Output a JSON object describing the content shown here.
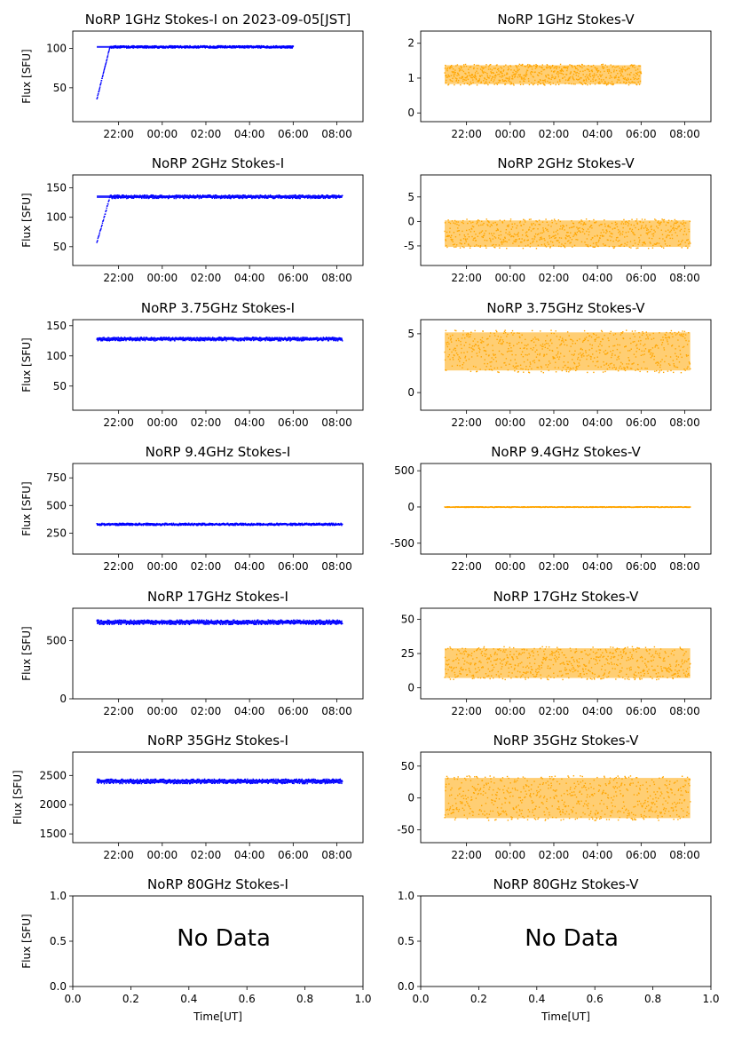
{
  "figure": {
    "xlabel": "Time[UT]",
    "time_ticks": [
      "22:00",
      "00:00",
      "02:00",
      "04:00",
      "06:00",
      "08:00"
    ],
    "nodata_ticks": [
      "0.0",
      "0.2",
      "0.4",
      "0.6",
      "0.8",
      "1.0"
    ],
    "nodata_yticks": [
      "0.0",
      "0.5",
      "1.0"
    ],
    "nodata_text": "No Data",
    "colors": {
      "stokes_i": "#0000ff",
      "stokes_v": "#ffa500",
      "axes": "#000000"
    }
  },
  "chart_data": [
    {
      "type": "scatter",
      "id": "1ghz-i",
      "title": "NoRP 1GHz Stokes-I on 2023-09-05[JST]",
      "ylabel": "Flux [SFU]",
      "yticks": [
        "50",
        "100"
      ],
      "ylim": [
        7,
        122
      ],
      "x_range": [
        "21:00",
        "06:00"
      ],
      "baseline": 102,
      "noise": 1.5,
      "color": "#0000ff"
    },
    {
      "type": "scatter",
      "id": "1ghz-v",
      "title": "NoRP 1GHz Stokes-V",
      "ylabel": "",
      "yticks": [
        "0",
        "1",
        "2"
      ],
      "ylim": [
        -0.25,
        2.35
      ],
      "x_range": [
        "21:00",
        "06:00"
      ],
      "baseline": 1.1,
      "noise": 0.3,
      "color": "#ffa500"
    },
    {
      "type": "scatter",
      "id": "2ghz-i",
      "title": "NoRP 2GHz Stokes-I",
      "ylabel": "Flux [SFU]",
      "yticks": [
        "50",
        "100",
        "150"
      ],
      "ylim": [
        18,
        172
      ],
      "x_range": [
        "21:00",
        "08:15"
      ],
      "baseline": 135,
      "noise": 3,
      "color": "#0000ff"
    },
    {
      "type": "scatter",
      "id": "2ghz-v",
      "title": "NoRP 2GHz Stokes-V",
      "ylabel": "",
      "yticks": [
        "-5",
        "0",
        "5"
      ],
      "ylim": [
        -9,
        9.5
      ],
      "x_range": [
        "21:00",
        "08:15"
      ],
      "baseline": -2.5,
      "noise": 3,
      "color": "#ffa500"
    },
    {
      "type": "scatter",
      "id": "375ghz-i",
      "title": "NoRP 3.75GHz Stokes-I",
      "ylabel": "Flux [SFU]",
      "yticks": [
        "50",
        "100",
        "150"
      ],
      "ylim": [
        10,
        160
      ],
      "x_range": [
        "21:00",
        "08:15"
      ],
      "baseline": 128,
      "noise": 3,
      "color": "#0000ff"
    },
    {
      "type": "scatter",
      "id": "375ghz-v",
      "title": "NoRP 3.75GHz Stokes-V",
      "ylabel": "",
      "yticks": [
        "0",
        "5"
      ],
      "ylim": [
        -1.5,
        6.2
      ],
      "x_range": [
        "21:00",
        "08:15"
      ],
      "baseline": 3.5,
      "noise": 1.8,
      "color": "#ffa500"
    },
    {
      "type": "scatter",
      "id": "94ghz-i",
      "title": "NoRP 9.4GHz Stokes-I",
      "ylabel": "Flux [SFU]",
      "yticks": [
        "250",
        "500",
        "750"
      ],
      "ylim": [
        60,
        880
      ],
      "x_range": [
        "21:00",
        "08:15"
      ],
      "baseline": 330,
      "noise": 10,
      "color": "#0000ff"
    },
    {
      "type": "scatter",
      "id": "94ghz-v",
      "title": "NoRP 9.4GHz Stokes-V",
      "ylabel": "",
      "yticks": [
        "-500",
        "0",
        "500"
      ],
      "ylim": [
        -650,
        600
      ],
      "x_range": [
        "21:00",
        "08:15"
      ],
      "baseline": 0,
      "noise": 5,
      "color": "#ffa500"
    },
    {
      "type": "scatter",
      "id": "17ghz-i",
      "title": "NoRP 17GHz Stokes-I",
      "ylabel": "Flux [SFU]",
      "yticks": [
        "0",
        "500"
      ],
      "ylim": [
        0,
        780
      ],
      "x_range": [
        "21:00",
        "08:15"
      ],
      "baseline": 660,
      "noise": 20,
      "color": "#0000ff"
    },
    {
      "type": "scatter",
      "id": "17ghz-v",
      "title": "NoRP 17GHz Stokes-V",
      "ylabel": "",
      "yticks": [
        "0",
        "25",
        "50"
      ],
      "ylim": [
        -8,
        58
      ],
      "x_range": [
        "21:00",
        "08:15"
      ],
      "baseline": 18,
      "noise": 12,
      "color": "#ffa500"
    },
    {
      "type": "scatter",
      "id": "35ghz-i",
      "title": "NoRP 35GHz Stokes-I",
      "ylabel": "Flux [SFU]",
      "yticks": [
        "1500",
        "2000",
        "2500"
      ],
      "ylim": [
        1350,
        2900
      ],
      "x_range": [
        "21:00",
        "08:15"
      ],
      "baseline": 2400,
      "noise": 40,
      "color": "#0000ff"
    },
    {
      "type": "scatter",
      "id": "35ghz-v",
      "title": "NoRP 35GHz Stokes-V",
      "ylabel": "",
      "yticks": [
        "-50",
        "0",
        "50"
      ],
      "ylim": [
        -70,
        72
      ],
      "x_range": [
        "21:00",
        "08:15"
      ],
      "baseline": 0,
      "noise": 35,
      "color": "#ffa500"
    },
    {
      "type": "scatter",
      "id": "80ghz-i",
      "title": "NoRP 80GHz Stokes-I",
      "ylabel": "Flux [SFU]",
      "nodata": true
    },
    {
      "type": "scatter",
      "id": "80ghz-v",
      "title": "NoRP 80GHz Stokes-V",
      "ylabel": "",
      "nodata": true
    }
  ]
}
